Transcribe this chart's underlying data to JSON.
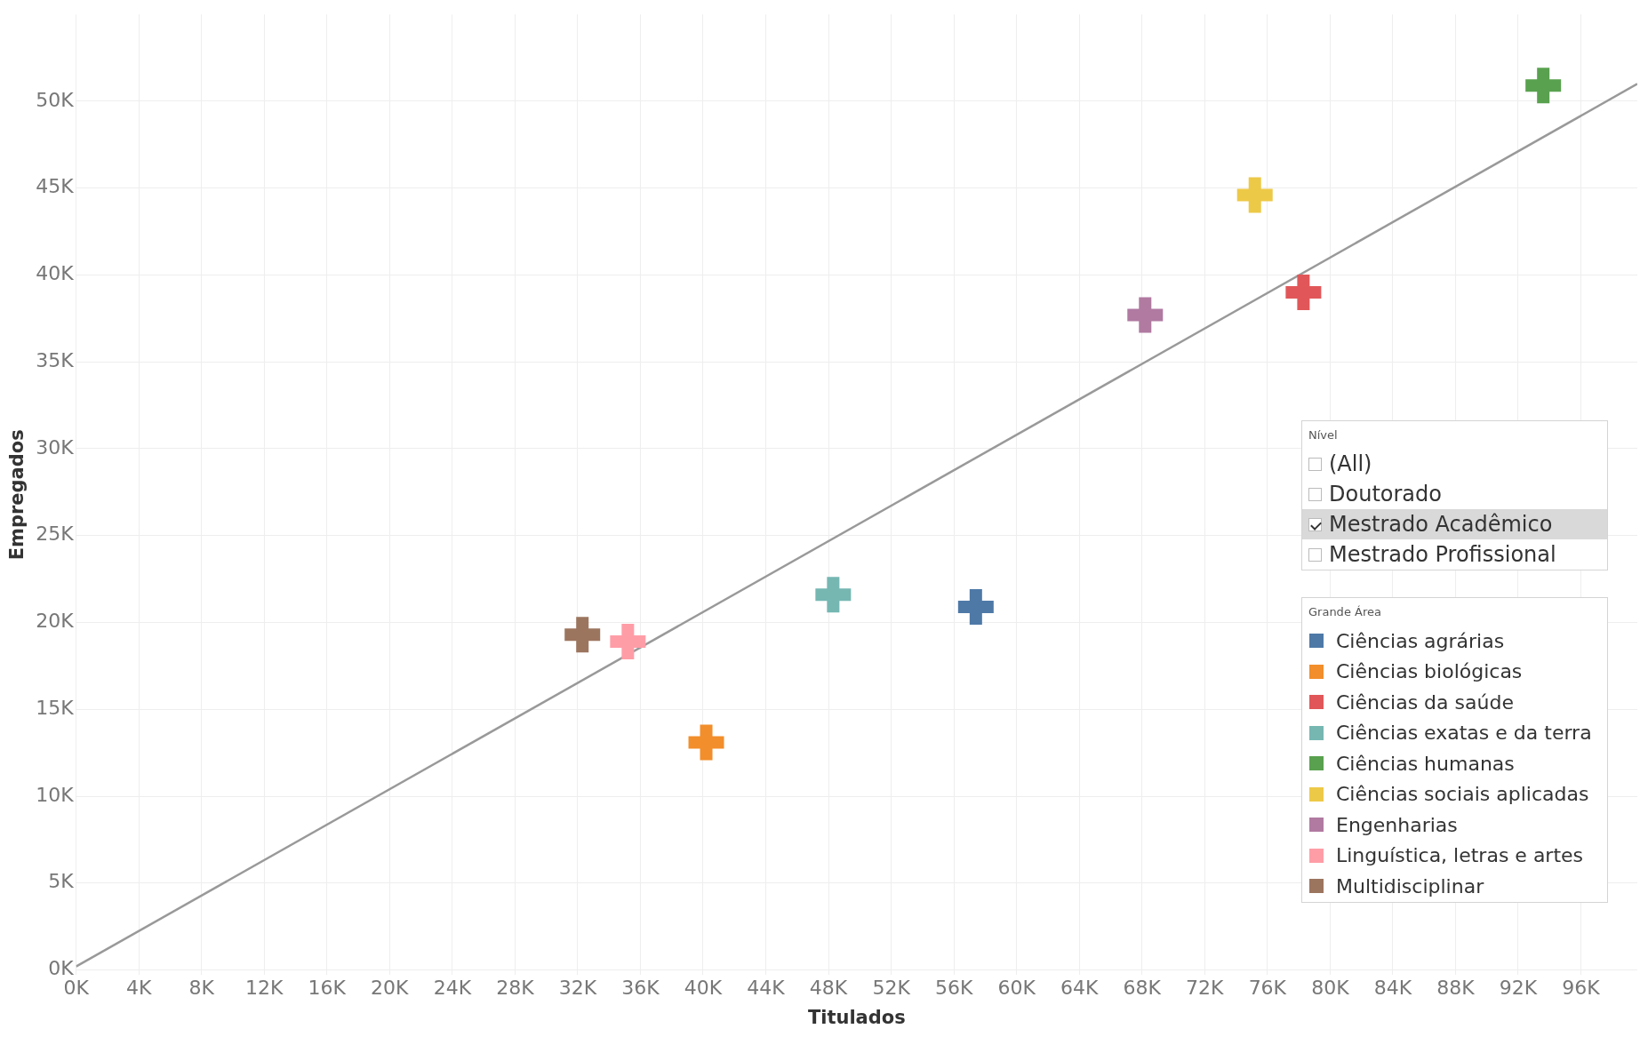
{
  "chart_data": {
    "type": "scatter",
    "xlabel": "Titulados",
    "ylabel": "Empregados",
    "legend_title": "Grande Área",
    "legend": "bottom right",
    "grid": true,
    "marker": "cross",
    "annotations": [
      "Nível",
      "(All)",
      "Doutorado",
      "Mestrado Acadêmico",
      "Mestrado Profissional"
    ],
    "xlim": [
      0,
      99600
    ],
    "ylim": [
      -300,
      55000
    ],
    "xticks": [
      {
        "value": 0,
        "label": "0K"
      },
      {
        "value": 4000,
        "label": "4K"
      },
      {
        "value": 8000,
        "label": "8K"
      },
      {
        "value": 12000,
        "label": "12K"
      },
      {
        "value": 16000,
        "label": "16K"
      },
      {
        "value": 20000,
        "label": "20K"
      },
      {
        "value": 24000,
        "label": "24K"
      },
      {
        "value": 28000,
        "label": "28K"
      },
      {
        "value": 32000,
        "label": "32K"
      },
      {
        "value": 36000,
        "label": "36K"
      },
      {
        "value": 40000,
        "label": "40K"
      },
      {
        "value": 44000,
        "label": "44K"
      },
      {
        "value": 48000,
        "label": "48K"
      },
      {
        "value": 52000,
        "label": "52K"
      },
      {
        "value": 56000,
        "label": "56K"
      },
      {
        "value": 60000,
        "label": "60K"
      },
      {
        "value": 64000,
        "label": "64K"
      },
      {
        "value": 68000,
        "label": "68K"
      },
      {
        "value": 72000,
        "label": "72K"
      },
      {
        "value": 76000,
        "label": "76K"
      },
      {
        "value": 80000,
        "label": "80K"
      },
      {
        "value": 84000,
        "label": "84K"
      },
      {
        "value": 88000,
        "label": "88K"
      },
      {
        "value": 92000,
        "label": "92K"
      },
      {
        "value": 96000,
        "label": "96K"
      }
    ],
    "yticks": [
      {
        "value": 0,
        "label": "0K"
      },
      {
        "value": 5000,
        "label": "5K"
      },
      {
        "value": 10000,
        "label": "10K"
      },
      {
        "value": 15000,
        "label": "15K"
      },
      {
        "value": 20000,
        "label": "20K"
      },
      {
        "value": 25000,
        "label": "25K"
      },
      {
        "value": 30000,
        "label": "30K"
      },
      {
        "value": 35000,
        "label": "35K"
      },
      {
        "value": 40000,
        "label": "40K"
      },
      {
        "value": 45000,
        "label": "45K"
      },
      {
        "value": 50000,
        "label": "50K"
      }
    ],
    "series": [
      {
        "name": "Ciências agrárias",
        "color": "#4e79a7",
        "x": [
          57400
        ],
        "values": [
          20900
        ]
      },
      {
        "name": "Ciências biológicas",
        "color": "#f28e2b",
        "x": [
          40200
        ],
        "values": [
          13100
        ]
      },
      {
        "name": "Ciências da saúde",
        "color": "#e15759",
        "x": [
          78300
        ],
        "values": [
          39000
        ]
      },
      {
        "name": "Ciências exatas e da terra",
        "color": "#76b7b2",
        "x": [
          48300
        ],
        "values": [
          21600
        ]
      },
      {
        "name": "Ciências humanas",
        "color": "#59a14f",
        "x": [
          93600
        ],
        "values": [
          50900
        ]
      },
      {
        "name": "Ciências sociais aplicadas",
        "color": "#edc948",
        "x": [
          75200
        ],
        "values": [
          44600
        ]
      },
      {
        "name": "Engenharias",
        "color": "#b07aa1",
        "x": [
          68200
        ],
        "values": [
          37700
        ]
      },
      {
        "name": "Linguística, letras e artes",
        "color": "#ff9da7",
        "x": [
          35200
        ],
        "values": [
          18900
        ]
      },
      {
        "name": "Multidisciplinar",
        "color": "#9c755f",
        "x": [
          32300
        ],
        "values": [
          19300
        ]
      },
      {
        "type": "line",
        "marker": "none",
        "color": "#999999",
        "x": [
          0,
          99600
        ],
        "values": [
          200,
          51000
        ]
      }
    ]
  }
}
